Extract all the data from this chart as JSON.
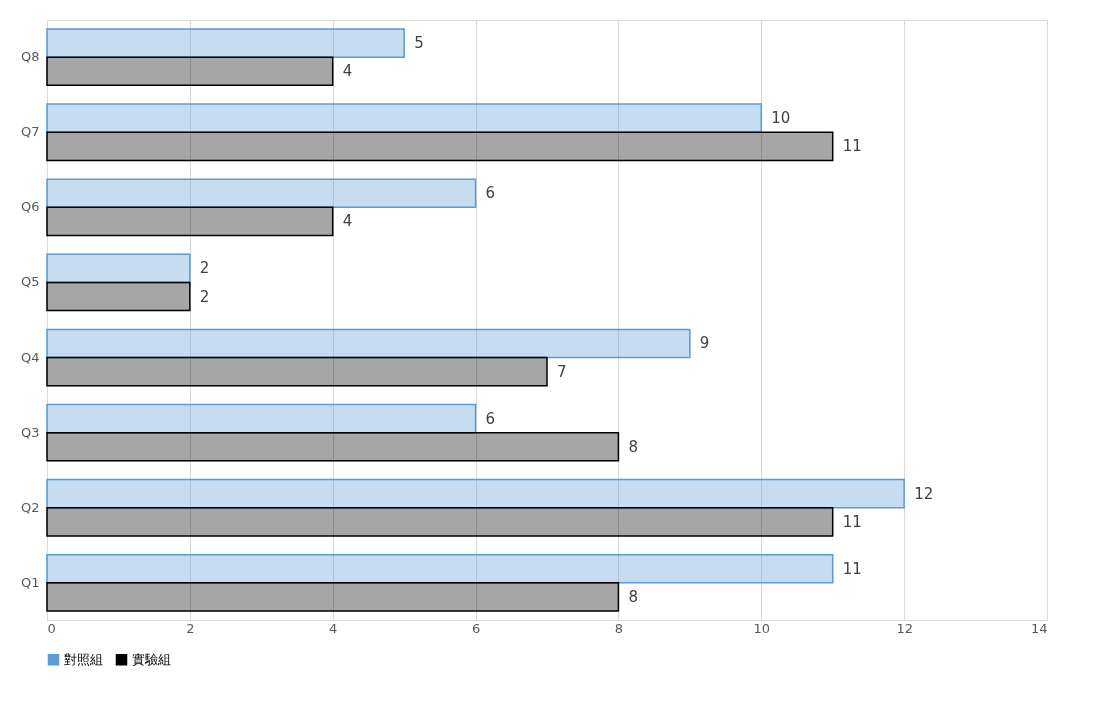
{
  "chart_data": {
    "type": "bar",
    "orientation": "horizontal",
    "categories": [
      "Q8",
      "Q7",
      "Q6",
      "Q5",
      "Q4",
      "Q3",
      "Q2",
      "Q1"
    ],
    "series": [
      {
        "name": "對照組",
        "color": "#5b9bd5",
        "values": [
          5,
          10,
          6,
          2,
          9,
          6,
          12,
          11
        ]
      },
      {
        "name": "實驗組",
        "color": "#000000",
        "values": [
          4,
          11,
          4,
          2,
          7,
          8,
          11,
          8
        ]
      }
    ],
    "xlim": [
      0,
      14
    ],
    "xticks": [
      0,
      2,
      4,
      6,
      8,
      10,
      12,
      14
    ],
    "grid": "x",
    "legend": "bottom",
    "data_labels": true
  }
}
